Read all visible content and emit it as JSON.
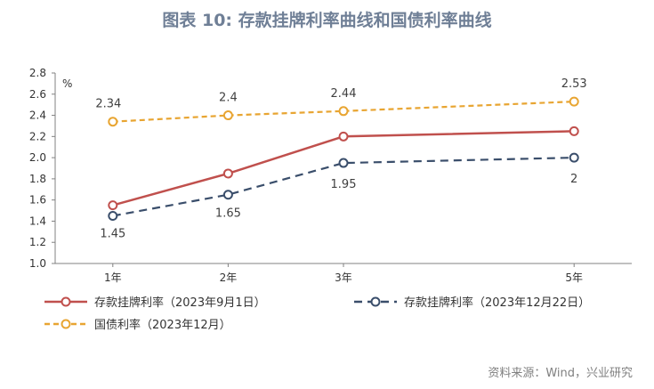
{
  "chart_data": {
    "type": "line",
    "title": "图表 10: 存款挂牌利率曲线和国债利率曲线",
    "unit_label": "%",
    "categories": [
      "1年",
      "2年",
      "3年",
      "5年"
    ],
    "x_positions": [
      1,
      2,
      3,
      5
    ],
    "ylim": [
      1.0,
      2.8
    ],
    "yticks": [
      "1.0",
      "1.2",
      "1.4",
      "1.6",
      "1.8",
      "2.0",
      "2.2",
      "2.4",
      "2.6",
      "2.8"
    ],
    "series": [
      {
        "name": "存款挂牌利率（2023年9月1日）",
        "values": [
          1.55,
          1.85,
          2.2,
          2.25
        ],
        "labels": [
          "",
          "",
          "",
          ""
        ],
        "color": "#c0504d",
        "dash": "solid"
      },
      {
        "name": "存款挂牌利率（2023年12月22日）",
        "values": [
          1.45,
          1.65,
          1.95,
          2.0
        ],
        "labels": [
          "1.45",
          "1.65",
          "1.95",
          "2"
        ],
        "color": "#3a4e6b",
        "dash": "dashed"
      },
      {
        "name": "国债利率（2023年12月）",
        "values": [
          2.34,
          2.4,
          2.44,
          2.53
        ],
        "labels": [
          "2.34",
          "2.4",
          "2.44",
          "2.53"
        ],
        "color": "#e8a532",
        "dash": "dashed"
      }
    ],
    "legend_position": "bottom",
    "source": "资料来源：Wind，兴业研究"
  }
}
